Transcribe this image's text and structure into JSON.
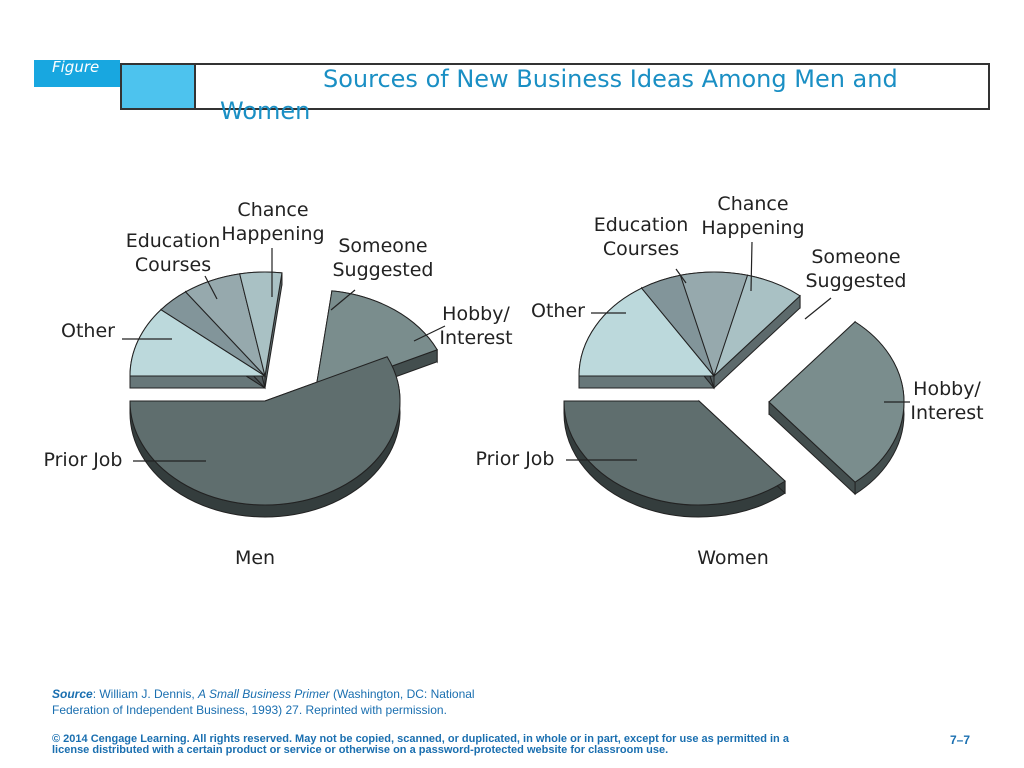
{
  "header": {
    "figure_label": "Figure",
    "title": "Sources of New Business Ideas Among Men and Women"
  },
  "chart_data": [
    {
      "type": "pie",
      "title": "Men",
      "categories": [
        "Other",
        "Education Courses",
        "Chance Happening",
        "Someone Suggested",
        "Hobby/ Interest",
        "Prior Job"
      ],
      "values": [
        11,
        4,
        7,
        5,
        16,
        57
      ],
      "exploded": [
        "Hobby/ Interest",
        "Prior Job"
      ],
      "colors": [
        "#bcd9dc",
        "#82959a",
        "#96a9ad",
        "#a9c1c4",
        "#7a8d8d",
        "#5f6e6e"
      ]
    },
    {
      "type": "pie",
      "title": "Women",
      "categories": [
        "Other",
        "Education Courses",
        "Chance Happening",
        "Someone Suggested",
        "Hobby/ Interest",
        "Prior Job"
      ],
      "values": [
        16,
        5,
        8,
        7,
        28,
        36
      ],
      "exploded": [
        "Hobby/ Interest",
        "Prior Job"
      ],
      "colors": [
        "#bcd9dc",
        "#82959a",
        "#96a9ad",
        "#a9c1c4",
        "#7a8d8d",
        "#5f6e6e"
      ]
    }
  ],
  "footer": {
    "source_label": "Source",
    "source_colon": ": William J. Dennis, ",
    "source_book": "A Small Business Primer",
    "source_rest": " (Washington, DC: National Federation of Independent Business, 1993) 27.  Reprinted with permission.",
    "copyright": "© 2014 Cengage Learning. All rights reserved. May not be copied, scanned, or duplicated, in whole or in part, except for use as permitted in a license distributed with a certain product or service or otherwise on a password-protected website for classroom use.",
    "page_number": "7–7"
  }
}
